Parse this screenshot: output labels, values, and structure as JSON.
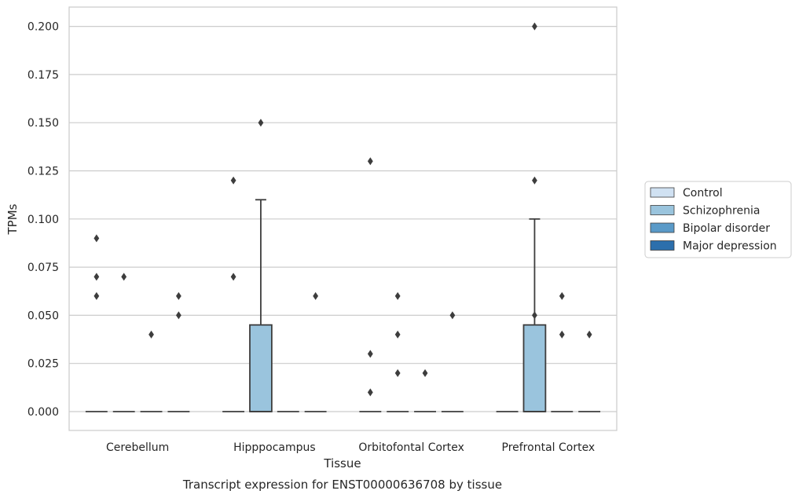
{
  "chart_data": {
    "type": "box",
    "title": "Transcript expression for ENST00000636708 by tissue",
    "xlabel": "Tissue",
    "ylabel": "TPMs",
    "ylim": [
      -0.0095,
      0.21
    ],
    "yticks": [
      0.0,
      0.025,
      0.05,
      0.075,
      0.1,
      0.125,
      0.15,
      0.175,
      0.2
    ],
    "ytick_labels": [
      "0.000",
      "0.025",
      "0.050",
      "0.075",
      "0.100",
      "0.125",
      "0.150",
      "0.175",
      "0.200"
    ],
    "grid": "horizontal",
    "legend_position": "right",
    "categories": [
      "Cerebellum",
      "Hipppocampus",
      "Orbitofontal Cortex",
      "Prefrontal Cortex"
    ],
    "series": [
      {
        "name": "Control",
        "color": "#d0e1f2",
        "boxes": [
          {
            "q1": 0,
            "median": 0,
            "q3": 0,
            "whisker_low": 0,
            "whisker_high": 0,
            "outliers": [
              0.09,
              0.07,
              0.06
            ]
          },
          {
            "q1": 0,
            "median": 0,
            "q3": 0,
            "whisker_low": 0,
            "whisker_high": 0,
            "outliers": [
              0.12,
              0.07
            ]
          },
          {
            "q1": 0,
            "median": 0,
            "q3": 0,
            "whisker_low": 0,
            "whisker_high": 0,
            "outliers": [
              0.13,
              0.03,
              0.01
            ]
          },
          {
            "q1": 0,
            "median": 0,
            "q3": 0,
            "whisker_low": 0,
            "whisker_high": 0,
            "outliers": []
          }
        ]
      },
      {
        "name": "Schizophrenia",
        "color": "#9ac4dd",
        "boxes": [
          {
            "q1": 0,
            "median": 0,
            "q3": 0,
            "whisker_low": 0,
            "whisker_high": 0,
            "outliers": [
              0.07
            ]
          },
          {
            "q1": 0,
            "median": 0,
            "q3": 0.045,
            "whisker_low": 0,
            "whisker_high": 0.11,
            "outliers": [
              0.15
            ]
          },
          {
            "q1": 0,
            "median": 0,
            "q3": 0,
            "whisker_low": 0,
            "whisker_high": 0,
            "outliers": [
              0.06,
              0.04,
              0.02
            ]
          },
          {
            "q1": 0,
            "median": 0,
            "q3": 0.045,
            "whisker_low": 0,
            "whisker_high": 0.1,
            "outliers": [
              0.2,
              0.12,
              0.05
            ]
          }
        ]
      },
      {
        "name": "Bipolar disorder",
        "color": "#5a9ac8",
        "boxes": [
          {
            "q1": 0,
            "median": 0,
            "q3": 0,
            "whisker_low": 0,
            "whisker_high": 0,
            "outliers": [
              0.04
            ]
          },
          {
            "q1": 0,
            "median": 0,
            "q3": 0,
            "whisker_low": 0,
            "whisker_high": 0,
            "outliers": []
          },
          {
            "q1": 0,
            "median": 0,
            "q3": 0,
            "whisker_low": 0,
            "whisker_high": 0,
            "outliers": [
              0.02
            ]
          },
          {
            "q1": 0,
            "median": 0,
            "q3": 0,
            "whisker_low": 0,
            "whisker_high": 0,
            "outliers": [
              0.06,
              0.04
            ]
          }
        ]
      },
      {
        "name": "Major depression",
        "color": "#2c6fac",
        "boxes": [
          {
            "q1": 0,
            "median": 0,
            "q3": 0,
            "whisker_low": 0,
            "whisker_high": 0,
            "outliers": [
              0.06,
              0.05
            ]
          },
          {
            "q1": 0,
            "median": 0,
            "q3": 0,
            "whisker_low": 0,
            "whisker_high": 0,
            "outliers": [
              0.06
            ]
          },
          {
            "q1": 0,
            "median": 0,
            "q3": 0,
            "whisker_low": 0,
            "whisker_high": 0,
            "outliers": [
              0.05
            ]
          },
          {
            "q1": 0,
            "median": 0,
            "q3": 0,
            "whisker_low": 0,
            "whisker_high": 0,
            "outliers": [
              0.04
            ]
          }
        ]
      }
    ]
  }
}
